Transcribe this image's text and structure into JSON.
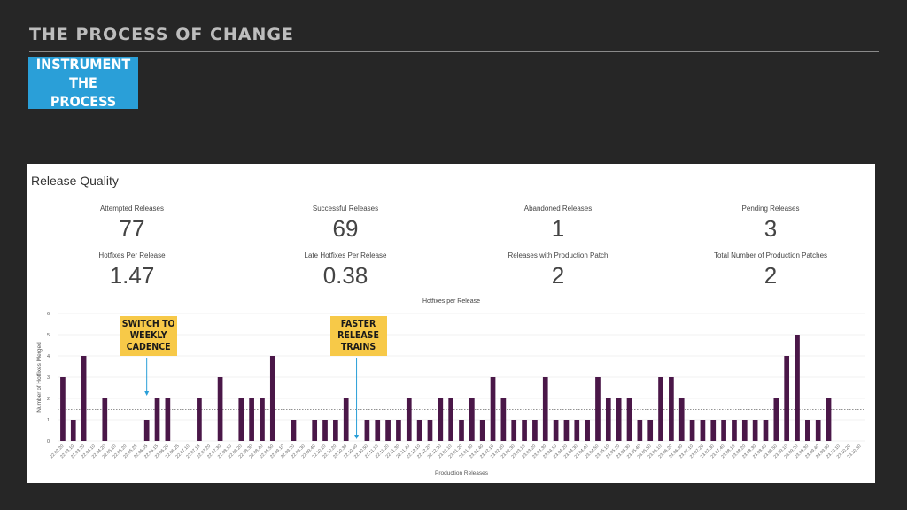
{
  "slide": {
    "title": "THE PROCESS OF CHANGE",
    "badge": "INSTRUMENT THE\nPROCESS"
  },
  "panel": {
    "title": "Release Quality",
    "stats": [
      {
        "label": "Attempted Releases",
        "value": "77"
      },
      {
        "label": "Successful Releases",
        "value": "69"
      },
      {
        "label": "Abandoned Releases",
        "value": "1"
      },
      {
        "label": "Pending Releases",
        "value": "3"
      },
      {
        "label": "Hotfixes Per Release",
        "value": "1.47"
      },
      {
        "label": "Late Hotfixes Per Release",
        "value": "0.38"
      },
      {
        "label": "Releases with Production Patch",
        "value": "2"
      },
      {
        "label": "Total Number of Production Patches",
        "value": "2"
      }
    ]
  },
  "annotations": [
    {
      "text": "SWITCH TO\nWEEKLY\nCADENCE",
      "target_index": 8
    },
    {
      "text": "FASTER\nRELEASE\nTRAINS",
      "target_index": 28
    }
  ],
  "colors": {
    "bar": "#4a1748",
    "badge": "#2a9fd8",
    "callout": "#f7c948",
    "arrow": "#2a9fd8"
  },
  "chart_data": {
    "type": "bar",
    "title": "Hotfixes per Release",
    "xlabel": "Production Releases",
    "ylabel": "Number of Hotfixes Merged",
    "ylim": [
      0,
      6
    ],
    "yticks": [
      0,
      1,
      2,
      3,
      4,
      5,
      6
    ],
    "mean_line": 1.47,
    "grid": true,
    "categories": [
      "22.02.20",
      "22.03.10",
      "22.03.20",
      "22.04.10",
      "22.04.20",
      "22.05.10",
      "22.05.20",
      "22.05.25",
      "22.06.05",
      "22.06.15",
      "22.06.20",
      "22.06.25",
      "22.07.10",
      "22.07.15",
      "22.07.20",
      "22.07.30",
      "22.08.10",
      "22.08.20",
      "22.08.30",
      "22.08.40",
      "22.08.50",
      "22.09.10",
      "22.09.20",
      "22.09.30",
      "22.09.40",
      "22.10.10",
      "22.10.20",
      "22.10.30",
      "22.10.40",
      "22.10.50",
      "22.11.10",
      "22.11.20",
      "22.11.30",
      "22.11.40",
      "22.12.10",
      "22.12.20",
      "22.12.30",
      "23.01.10",
      "23.01.20",
      "23.01.30",
      "23.01.40",
      "23.02.10",
      "23.02.20",
      "23.02.30",
      "23.03.10",
      "23.03.20",
      "23.03.30",
      "23.04.10",
      "23.04.20",
      "23.04.30",
      "23.04.40",
      "23.04.50",
      "23.05.10",
      "23.05.20",
      "23.05.30",
      "23.05.40",
      "23.05.50",
      "23.06.10",
      "23.06.20",
      "23.06.30",
      "23.07.10",
      "23.07.20",
      "23.07.30",
      "23.07.40",
      "23.08.10",
      "23.08.20",
      "23.08.30",
      "23.08.40",
      "23.08.50",
      "23.09.10",
      "23.09.20",
      "23.09.30",
      "23.09.40",
      "23.09.50",
      "23.10.10",
      "23.10.20",
      "23.10.30"
    ],
    "values": [
      3,
      1,
      4,
      0,
      2,
      0,
      0,
      0,
      1,
      2,
      2,
      0,
      0,
      2,
      0,
      3,
      0,
      2,
      2,
      2,
      4,
      0,
      1,
      0,
      1,
      1,
      1,
      2,
      0,
      1,
      1,
      1,
      1,
      2,
      1,
      1,
      2,
      2,
      1,
      2,
      1,
      3,
      2,
      1,
      1,
      1,
      3,
      1,
      1,
      1,
      1,
      3,
      2,
      2,
      2,
      1,
      1,
      3,
      3,
      2,
      1,
      1,
      1,
      1,
      1,
      1,
      1,
      1,
      2,
      4,
      5,
      1,
      1,
      2,
      0,
      0,
      0
    ],
    "tick_labels": [
      "22.02.20",
      "22.03.10",
      "22.03.20",
      "22.04.10",
      "22.04.20",
      "22.05.10",
      "22.05.20",
      "22.05.25",
      "22.06.05",
      "22.06.15",
      "22.06.20",
      "22.06.25",
      "22.07.10",
      "22.07.15",
      "22.07.20",
      "22.07.30",
      "22.08.10",
      "22.08.20",
      "22.08.30",
      "22.08.40",
      "22.08.50",
      "22.09.10",
      "22.09.20",
      "22.09.30",
      "22.09.40",
      "22.10.10",
      "22.10.20",
      "22.10.30",
      "22.10.40",
      "22.10.50",
      "22.11.10",
      "22.11.20",
      "22.11.30",
      "22.11.40",
      "22.12.10",
      "22.12.20",
      "22.12.30",
      "23.01.10",
      "23.01.20",
      "23.01.30",
      "23.01.40",
      "23.02.10",
      "23.02.20",
      "23.02.30",
      "23.03.10",
      "23.03.20",
      "23.03.30",
      "23.04.10",
      "23.04.20",
      "23.04.30",
      "23.04.40",
      "23.04.50",
      "23.05.10",
      "23.05.20",
      "23.05.30",
      "23.05.40",
      "23.05.50",
      "23.06.10",
      "23.06.20",
      "23.06.30",
      "23.07.10",
      "23.07.20",
      "23.07.30",
      "23.07.40",
      "23.08.10",
      "23.08.20",
      "23.08.30",
      "23.08.40",
      "23.08.50",
      "23.09.10",
      "23.09.20",
      "23.09.30",
      "23.09.40",
      "23.09.50",
      "23.10.10",
      "23.10.20",
      "23.10.30"
    ]
  }
}
